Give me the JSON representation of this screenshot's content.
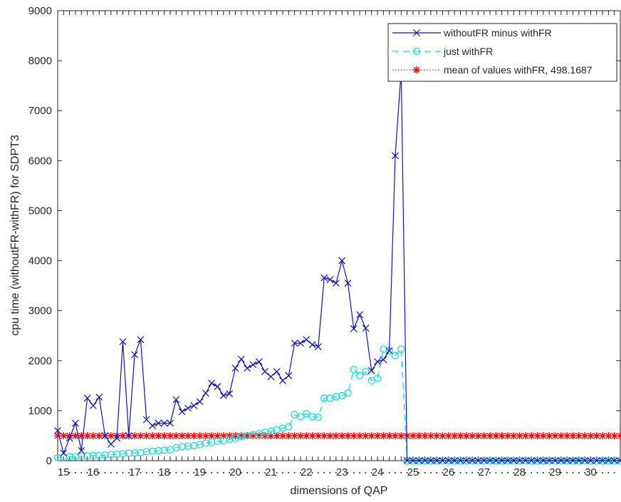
{
  "chart_data": {
    "type": "line",
    "xlabel": "dimensions of QAP",
    "ylabel": "cpu time (withoutFR-withFR) for SDPT3",
    "ylim": [
      0,
      9000
    ],
    "yticks": [
      0,
      1000,
      2000,
      3000,
      4000,
      5000,
      6000,
      7000,
      8000,
      9000
    ],
    "x_tick_labels": [
      "15",
      "16",
      "17",
      "18",
      "19",
      "20",
      "21",
      "22",
      "23",
      "24",
      "25",
      "26",
      "27",
      "28",
      "29",
      "30"
    ],
    "x_tick_positions": [
      1,
      6,
      13,
      18,
      24,
      30,
      36,
      42,
      48,
      54,
      60,
      66,
      72,
      78,
      84,
      90
    ],
    "xlim": [
      0,
      95
    ],
    "colors": {
      "series1": "#1010c8",
      "series2": "#00e0e0",
      "series3": "#ff0000",
      "axis": "#262626"
    },
    "legend_position": "top-right",
    "series": [
      {
        "name": "withoutFR minus withFR",
        "marker": "x",
        "line": "solid",
        "values": [
          600,
          150,
          450,
          750,
          200,
          1250,
          1100,
          1270,
          500,
          330,
          450,
          2380,
          500,
          2120,
          2420,
          820,
          700,
          750,
          750,
          750,
          1220,
          980,
          1050,
          1100,
          1180,
          1350,
          1550,
          1480,
          1300,
          1340,
          1850,
          2030,
          1850,
          1920,
          1980,
          1780,
          1680,
          1780,
          1600,
          1700,
          2350,
          2350,
          2420,
          2320,
          2280,
          3660,
          3620,
          3550,
          4000,
          3550,
          2640,
          2920,
          2650,
          1800,
          1980,
          2020,
          2200,
          6100,
          7800,
          0,
          0,
          0,
          0,
          0,
          0,
          0,
          0,
          0,
          0,
          0,
          0,
          0,
          0,
          0,
          0,
          0,
          0,
          0,
          0,
          0,
          0,
          0,
          0,
          0,
          0,
          0,
          0,
          0,
          0,
          0,
          0,
          0,
          0,
          0,
          0,
          0
        ]
      },
      {
        "name": "just withFR",
        "marker": "o",
        "line": "dashed",
        "values": [
          60,
          70,
          80,
          85,
          90,
          95,
          100,
          105,
          110,
          120,
          130,
          140,
          150,
          155,
          160,
          180,
          190,
          200,
          210,
          220,
          260,
          280,
          290,
          300,
          320,
          350,
          370,
          390,
          400,
          420,
          450,
          480,
          500,
          520,
          540,
          570,
          590,
          620,
          650,
          680,
          920,
          880,
          940,
          880,
          870,
          1250,
          1250,
          1280,
          1300,
          1350,
          1820,
          1700,
          1780,
          1600,
          1650,
          2230,
          2200,
          2100,
          2230,
          0,
          0,
          0,
          0,
          0,
          0,
          0,
          0,
          0,
          0,
          0,
          0,
          0,
          0,
          0,
          0,
          0,
          0,
          0,
          0,
          0,
          0,
          0,
          0,
          0,
          0,
          0,
          0,
          0,
          0,
          0,
          0,
          0,
          0,
          0,
          0,
          0
        ]
      },
      {
        "name": "mean of values withFR, 498.1687",
        "marker": "*",
        "line": "dotted",
        "constant": 498.1687
      }
    ]
  }
}
